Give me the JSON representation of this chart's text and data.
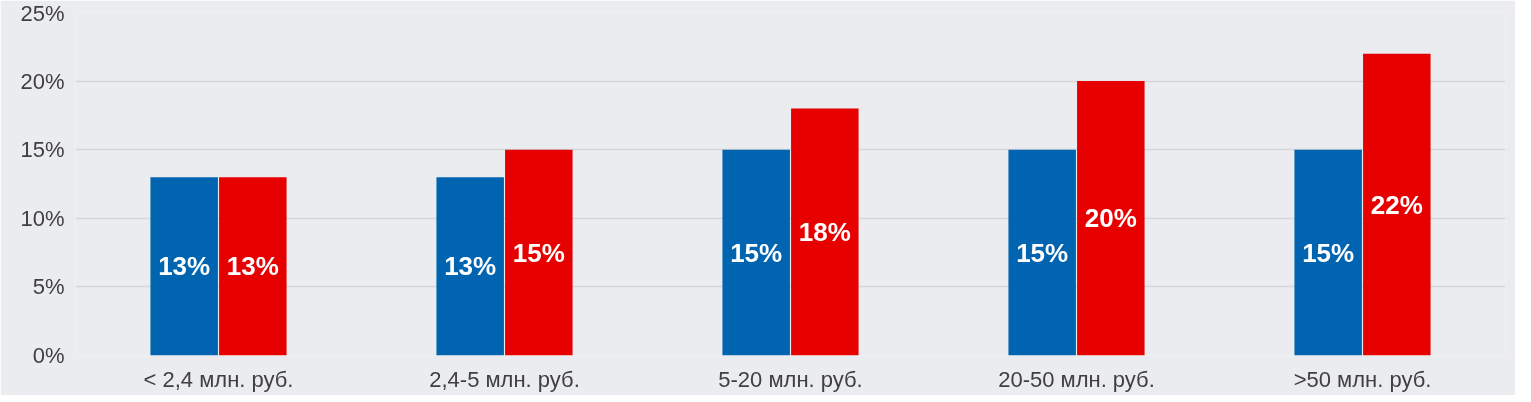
{
  "chart_data": {
    "type": "bar",
    "categories": [
      "< 2,4 млн. руб.",
      "2,4-5 млн. руб.",
      "5-20 млн. руб.",
      "20-50 млн. руб.",
      ">50 млн. руб."
    ],
    "series": [
      {
        "color": "#0064b0",
        "values": [
          13,
          13,
          15,
          15,
          15
        ],
        "value_labels": [
          "13%",
          "13%",
          "15%",
          "15%",
          "15%"
        ]
      },
      {
        "color": "#e60000",
        "values": [
          13,
          15,
          18,
          20,
          22
        ],
        "value_labels": [
          "13%",
          "15%",
          "18%",
          "20%",
          "22%"
        ]
      }
    ],
    "ylim": [
      0,
      25
    ],
    "yticks": [
      {
        "value": 0,
        "label": "0%"
      },
      {
        "value": 5,
        "label": "5%"
      },
      {
        "value": 10,
        "label": "10%"
      },
      {
        "value": 15,
        "label": "15%"
      },
      {
        "value": 20,
        "label": "20%"
      },
      {
        "value": 25,
        "label": "25%"
      }
    ],
    "grid": "y"
  }
}
